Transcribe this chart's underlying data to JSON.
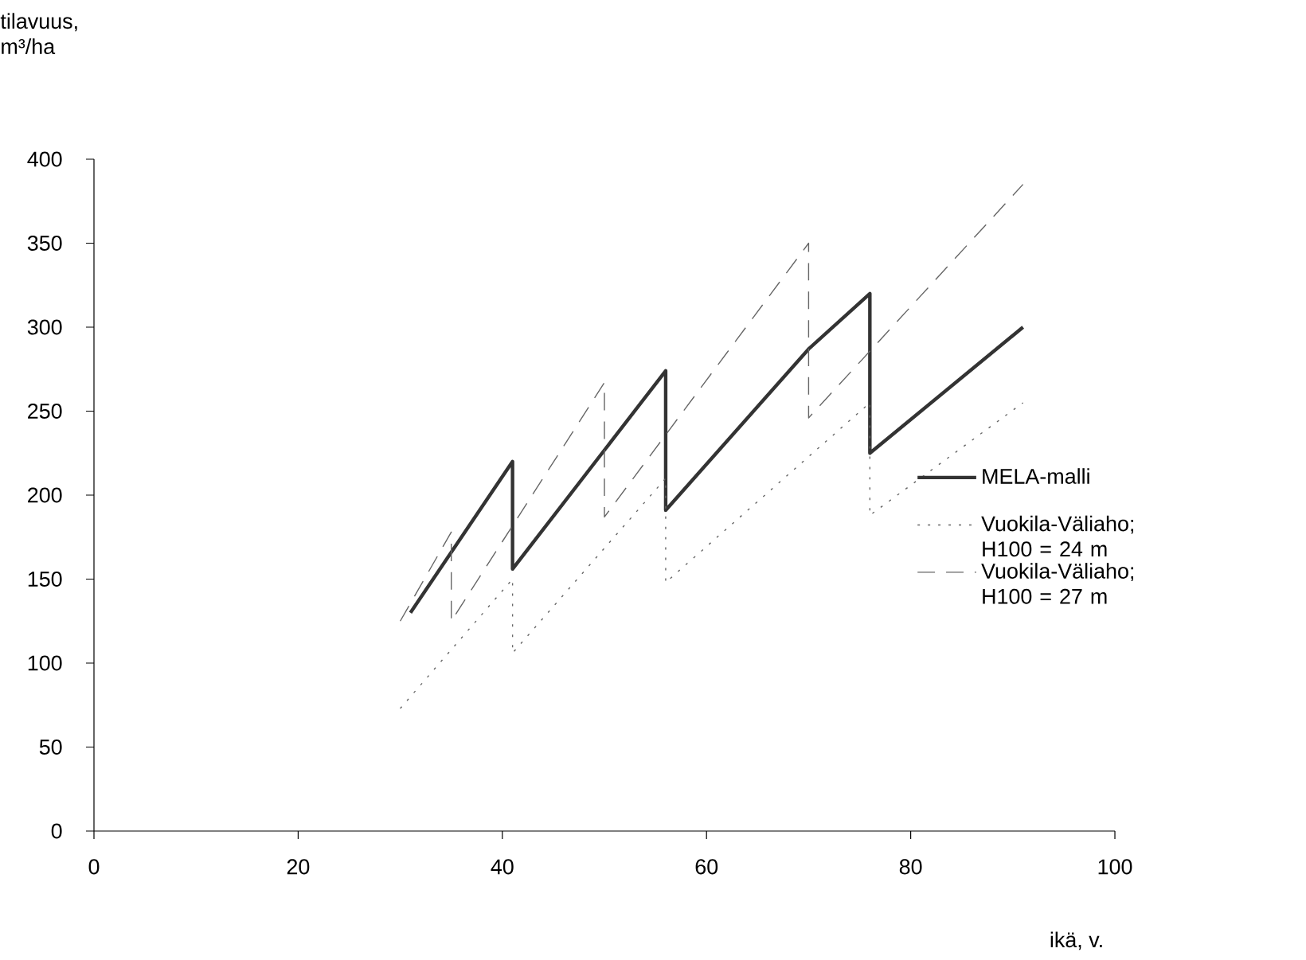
{
  "chart_data": {
    "type": "line",
    "xlabel": "ikä, v.",
    "ylabel": "tilavuus, m³/ha",
    "xlim": [
      0,
      100
    ],
    "ylim": [
      0,
      400
    ],
    "xticks": [
      0,
      20,
      40,
      60,
      80,
      100
    ],
    "yticks": [
      0,
      50,
      100,
      150,
      200,
      250,
      300,
      350,
      400
    ],
    "grid": false,
    "legend": "right",
    "marker": "none",
    "series": [
      {
        "name": "MELA-malli",
        "color": "#333333",
        "line_style": "solid",
        "x": [
          31,
          41,
          41,
          56,
          56,
          70,
          76,
          76,
          91
        ],
        "values": [
          130,
          220,
          156,
          274,
          191,
          287,
          320,
          225,
          300
        ]
      },
      {
        "name": "Vuokila-Väliaho; H100 = 24 m",
        "color": "#666666",
        "line_style": "dotted",
        "x": [
          30,
          41,
          41,
          56,
          56,
          76,
          76,
          91
        ],
        "values": [
          73,
          150,
          106,
          210,
          148,
          255,
          188,
          255
        ]
      },
      {
        "name": "Vuokila-Väliaho; H100 = 27 m",
        "color": "#666666",
        "line_style": "dashed",
        "x": [
          30,
          35,
          35,
          50,
          50,
          70,
          70,
          91
        ],
        "values": [
          125,
          178,
          125,
          267,
          187,
          350,
          246,
          385
        ]
      }
    ]
  }
}
